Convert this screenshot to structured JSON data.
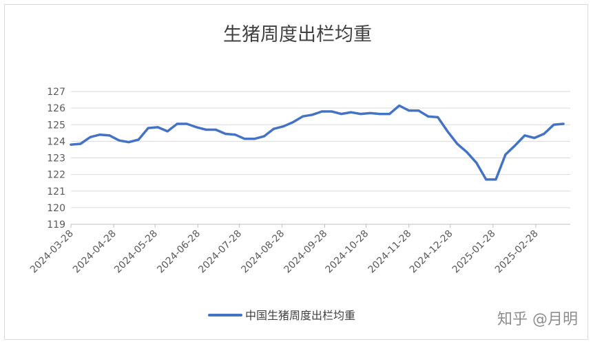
{
  "chart_data": {
    "type": "line",
    "title": "生猪周度出栏均重",
    "xlabel": "",
    "ylabel": "",
    "ylim": [
      119,
      127
    ],
    "y_ticks": [
      119,
      120,
      121,
      122,
      123,
      124,
      125,
      126,
      127
    ],
    "grid": "horizontal",
    "legend_position": "bottom",
    "x_tick_labels": [
      "2024-03-28",
      "2024-04-28",
      "2024-05-28",
      "2024-06-28",
      "2024-07-28",
      "2024-08-28",
      "2024-09-28",
      "2024-10-28",
      "2024-11-28",
      "2024-12-28",
      "2025-01-28",
      "2025-02-28"
    ],
    "series": [
      {
        "name": "中国生猪周度出栏均重",
        "color": "#4472c4",
        "points": [
          [
            "2024-03-28",
            123.8
          ],
          [
            "2024-04-04",
            123.85
          ],
          [
            "2024-04-11",
            124.25
          ],
          [
            "2024-04-18",
            124.4
          ],
          [
            "2024-04-25",
            124.35
          ],
          [
            "2024-05-02",
            124.05
          ],
          [
            "2024-05-09",
            123.95
          ],
          [
            "2024-05-16",
            124.1
          ],
          [
            "2024-05-23",
            124.8
          ],
          [
            "2024-05-30",
            124.85
          ],
          [
            "2024-06-06",
            124.6
          ],
          [
            "2024-06-13",
            125.05
          ],
          [
            "2024-06-20",
            125.05
          ],
          [
            "2024-06-27",
            124.85
          ],
          [
            "2024-07-04",
            124.7
          ],
          [
            "2024-07-11",
            124.7
          ],
          [
            "2024-07-18",
            124.45
          ],
          [
            "2024-07-25",
            124.4
          ],
          [
            "2024-08-01",
            124.15
          ],
          [
            "2024-08-08",
            124.15
          ],
          [
            "2024-08-15",
            124.3
          ],
          [
            "2024-08-22",
            124.75
          ],
          [
            "2024-08-29",
            124.9
          ],
          [
            "2024-09-05",
            125.15
          ],
          [
            "2024-09-12",
            125.5
          ],
          [
            "2024-09-19",
            125.6
          ],
          [
            "2024-09-26",
            125.8
          ],
          [
            "2024-10-03",
            125.8
          ],
          [
            "2024-10-10",
            125.65
          ],
          [
            "2024-10-17",
            125.75
          ],
          [
            "2024-10-24",
            125.65
          ],
          [
            "2024-10-31",
            125.7
          ],
          [
            "2024-11-07",
            125.65
          ],
          [
            "2024-11-14",
            125.65
          ],
          [
            "2024-11-21",
            126.15
          ],
          [
            "2024-11-28",
            125.85
          ],
          [
            "2024-12-05",
            125.85
          ],
          [
            "2024-12-12",
            125.5
          ],
          [
            "2024-12-19",
            125.45
          ],
          [
            "2024-12-26",
            124.6
          ],
          [
            "2025-01-02",
            123.85
          ],
          [
            "2025-01-09",
            123.35
          ],
          [
            "2025-01-16",
            122.7
          ],
          [
            "2025-01-23",
            121.7
          ],
          [
            "2025-01-30",
            121.7
          ],
          [
            "2025-02-06",
            123.2
          ],
          [
            "2025-02-13",
            123.75
          ],
          [
            "2025-02-20",
            124.35
          ],
          [
            "2025-02-27",
            124.2
          ],
          [
            "2025-03-06",
            124.45
          ],
          [
            "2025-03-13",
            125.0
          ],
          [
            "2025-03-20",
            125.05
          ]
        ]
      }
    ]
  },
  "watermark": "知乎 @月明"
}
